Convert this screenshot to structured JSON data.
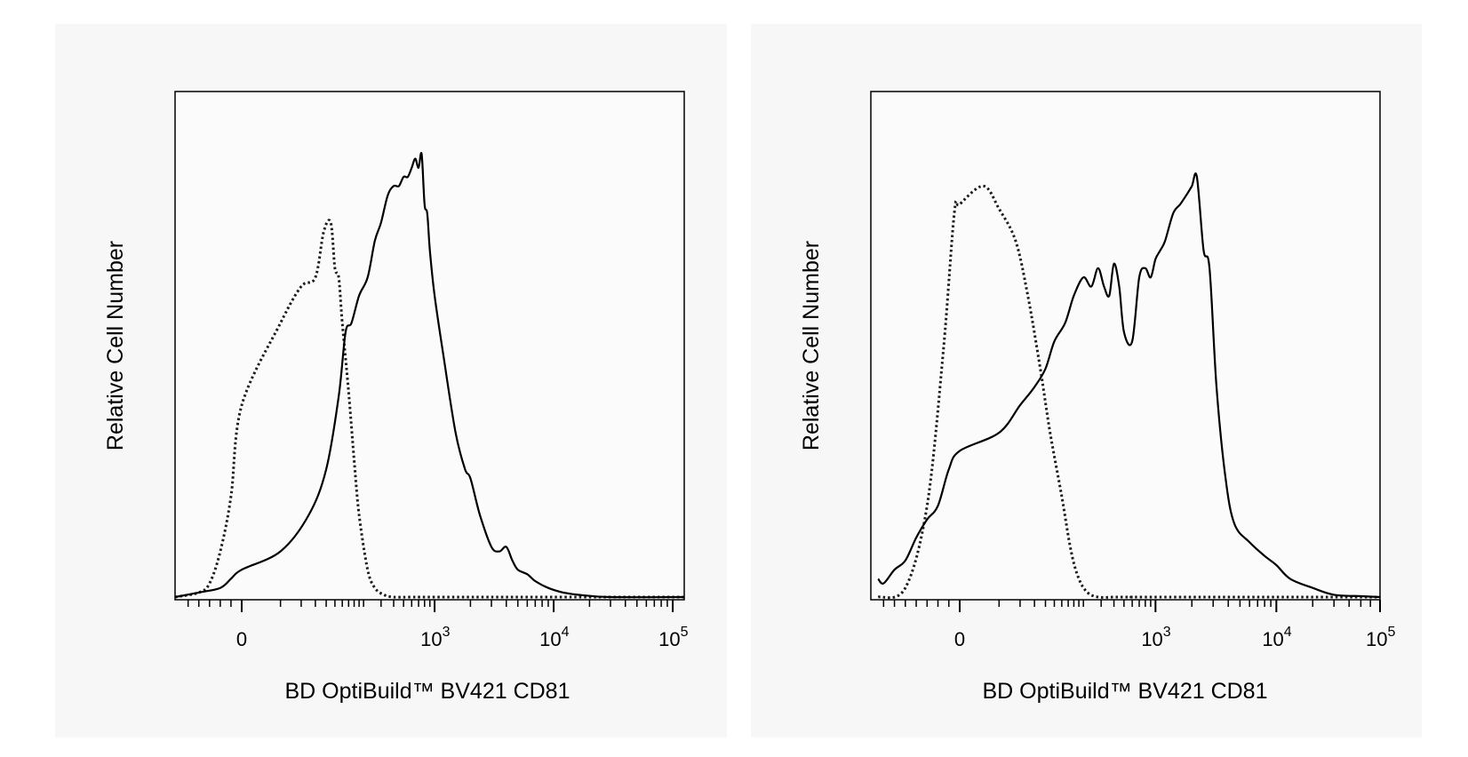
{
  "chart_data": [
    {
      "type": "area",
      "xlabel": "BD OptiBuild™ BV421 CD81",
      "ylabel": "Relative Cell Number",
      "x_scale": "biexponential",
      "xlim": [
        -150,
        200000
      ],
      "ylim": [
        0,
        100
      ],
      "y_ticks_shown": false,
      "x_tick_labels": [
        {
          "value": 0,
          "base": "0",
          "exp": ""
        },
        {
          "value": 1000,
          "base": "10",
          "exp": "3"
        },
        {
          "value": 10000,
          "base": "10",
          "exp": "4"
        },
        {
          "value": 100000,
          "base": "10",
          "exp": "5"
        }
      ],
      "series": [
        {
          "style": "dotted",
          "x": [
            -150,
            -80,
            -60,
            -40,
            -20,
            0,
            20,
            40,
            60,
            75,
            90,
            100,
            110,
            120,
            140,
            160,
            180,
            220,
            260,
            320,
            400,
            600,
            1000,
            10000,
            200000
          ],
          "y": [
            0,
            1,
            3,
            10,
            22,
            42,
            60,
            68,
            70,
            80,
            82,
            72,
            70,
            60,
            45,
            30,
            18,
            6,
            2,
            0.5,
            0,
            0,
            0,
            0,
            0
          ]
        },
        {
          "style": "solid",
          "x": [
            -150,
            -80,
            -40,
            -20,
            0,
            20,
            50,
            80,
            110,
            130,
            150,
            180,
            220,
            260,
            300,
            350,
            400,
            450,
            500,
            550,
            600,
            650,
            700,
            750,
            800,
            850,
            900,
            1000,
            1200,
            1500,
            1800,
            2000,
            2400,
            3000,
            3500,
            4000,
            4500,
            5000,
            6000,
            7000,
            9000,
            12000,
            16000,
            30000,
            200000
          ],
          "y": [
            0,
            1,
            2,
            4,
            6,
            10,
            18,
            28,
            44,
            58,
            60,
            66,
            70,
            78,
            82,
            88,
            90,
            90,
            92,
            92,
            94,
            96,
            94,
            97,
            86,
            84,
            76,
            66,
            52,
            36,
            28,
            26,
            18,
            11,
            10,
            11,
            8,
            6,
            5,
            3.5,
            2,
            1,
            0.5,
            0,
            0
          ]
        }
      ]
    },
    {
      "type": "area",
      "xlabel": "BD OptiBuild™ BV421 CD81",
      "ylabel": "Relative Cell Number",
      "x_scale": "biexponential",
      "xlim": [
        -150,
        200000
      ],
      "ylim": [
        0,
        100
      ],
      "y_ticks_shown": false,
      "x_tick_labels": [
        {
          "value": 0,
          "base": "0",
          "exp": ""
        },
        {
          "value": 1000,
          "base": "10",
          "exp": "3"
        },
        {
          "value": 10000,
          "base": "10",
          "exp": "4"
        },
        {
          "value": 100000,
          "base": "10",
          "exp": "5"
        }
      ],
      "series": [
        {
          "style": "dotted",
          "x": [
            -150,
            -100,
            -60,
            -30,
            -10,
            0,
            10,
            20,
            35,
            50,
            70,
            90,
            120,
            150,
            180,
            220,
            280,
            400,
            600,
            1000,
            200000
          ],
          "y": [
            0,
            2,
            20,
            54,
            84,
            86,
            90,
            85,
            78,
            66,
            50,
            36,
            22,
            10,
            4,
            1,
            0,
            0,
            0,
            0,
            0
          ]
        },
        {
          "style": "solid",
          "x": [
            -150,
            -140,
            -120,
            -100,
            -80,
            -60,
            -40,
            -20,
            0,
            20,
            40,
            60,
            80,
            100,
            130,
            160,
            200,
            240,
            280,
            320,
            360,
            400,
            450,
            500,
            600,
            700,
            800,
            900,
            1000,
            1100,
            1200,
            1400,
            1600,
            1800,
            2000,
            2200,
            2500,
            2800,
            3200,
            3800,
            4500,
            6000,
            8000,
            10000,
            13000,
            20000,
            30000,
            50000,
            200000
          ],
          "y": [
            4,
            3,
            6,
            8,
            13,
            17,
            20,
            28,
            32,
            36,
            42,
            46,
            50,
            56,
            60,
            66,
            70,
            68,
            72,
            68,
            66,
            73,
            68,
            58,
            56,
            70,
            72,
            70,
            74,
            76,
            78,
            84,
            86,
            88,
            90,
            92,
            76,
            72,
            46,
            26,
            16,
            12,
            9,
            7,
            4,
            2,
            0.5,
            0.2,
            0
          ]
        }
      ]
    }
  ]
}
